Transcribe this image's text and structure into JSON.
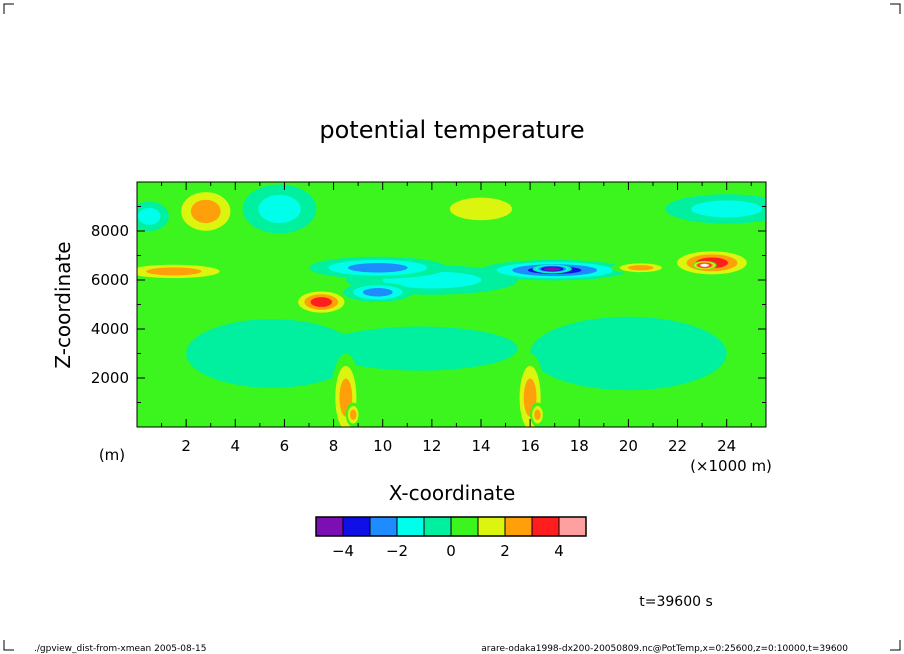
{
  "chart_data": {
    "type": "heatmap",
    "title": "potential temperature",
    "xlabel": "X-coordinate",
    "ylabel": "Z-coordinate",
    "x_unit_label": "(×1000 m)",
    "y_unit_label": "(m)",
    "xlim": [
      0,
      25.6
    ],
    "ylim": [
      0,
      10000
    ],
    "x_ticks": [
      2,
      4,
      6,
      8,
      10,
      12,
      14,
      16,
      18,
      20,
      22,
      24
    ],
    "y_ticks": [
      2000,
      4000,
      6000,
      8000
    ],
    "colorbar": {
      "boundaries": [
        -5,
        -4,
        -3,
        -2,
        -1,
        0,
        1,
        2,
        3,
        4,
        5
      ],
      "labels": [
        -4,
        -2,
        0,
        2,
        4
      ],
      "colors": [
        "#7b0fb4",
        "#0f0fe6",
        "#1e8cff",
        "#00ffeb",
        "#00f0a0",
        "#3cf51e",
        "#dcf50f",
        "#ffa00a",
        "#ff1e1e",
        "#ffa0a0"
      ]
    },
    "background_level_color": "#3cf51e",
    "anomalies": [
      {
        "x": 2.8,
        "z": 8800,
        "rx": 1.4,
        "rz": 1100,
        "value": 2.2
      },
      {
        "x": 5.8,
        "z": 8900,
        "rx": 1.5,
        "rz": 1000,
        "value": -1.8
      },
      {
        "x": 1.5,
        "z": 6350,
        "rx": 2.6,
        "rz": 380,
        "value": 2.6
      },
      {
        "x": 7.5,
        "z": 5100,
        "rx": 1.2,
        "rz": 550,
        "value": 3.4
      },
      {
        "x": 9.8,
        "z": 6500,
        "rx": 2.8,
        "rz": 450,
        "value": -2.6
      },
      {
        "x": 9.8,
        "z": 5500,
        "rx": 1.4,
        "rz": 400,
        "value": -2.6
      },
      {
        "x": 17.0,
        "z": 6400,
        "rx": 3.0,
        "rz": 420,
        "value": -3.6
      },
      {
        "x": 16.9,
        "z": 6450,
        "rx": 0.8,
        "rz": 180,
        "value": -6.0
      },
      {
        "x": 23.4,
        "z": 6700,
        "rx": 1.8,
        "rz": 600,
        "value": 3.4
      },
      {
        "x": 23.1,
        "z": 6600,
        "rx": 0.5,
        "rz": 180,
        "value": 6.0
      },
      {
        "x": 20.5,
        "z": 6500,
        "rx": 1.2,
        "rz": 250,
        "value": 2.5
      },
      {
        "x": 12.0,
        "z": 6000,
        "rx": 3.5,
        "rz": 600,
        "value": -1.3
      },
      {
        "x": 14.0,
        "z": 8900,
        "rx": 2.2,
        "rz": 800,
        "value": 1.4
      },
      {
        "x": 24.0,
        "z": 8900,
        "rx": 2.5,
        "rz": 600,
        "value": -1.5
      },
      {
        "x": 8.5,
        "z": 1200,
        "rx": 0.6,
        "rz": 1800,
        "value": 2.2
      },
      {
        "x": 16.0,
        "z": 1200,
        "rx": 0.6,
        "rz": 1800,
        "value": 2.2
      },
      {
        "x": 8.8,
        "z": 500,
        "rx": 0.3,
        "rz": 500,
        "value": 2.8
      },
      {
        "x": 16.3,
        "z": 500,
        "rx": 0.3,
        "rz": 500,
        "value": 2.8
      },
      {
        "x": 0.5,
        "z": 8600,
        "rx": 0.8,
        "rz": 600,
        "value": -1.5
      },
      {
        "x": 11.5,
        "z": 3200,
        "rx": 4.0,
        "rz": 900,
        "value": -0.8
      },
      {
        "x": 20.0,
        "z": 3000,
        "rx": 4.0,
        "rz": 1500,
        "value": -0.6
      },
      {
        "x": 5.5,
        "z": 3000,
        "rx": 3.5,
        "rz": 1400,
        "value": -0.6
      }
    ]
  },
  "annotations": {
    "time_label": "t=39600 s",
    "footer_left": "./gpview_dist-from-xmean  2005-08-15",
    "footer_right": "arare-odaka1998-dx200-20050809.nc@PotTemp,x=0:25600,z=0:10000,t=39600"
  }
}
